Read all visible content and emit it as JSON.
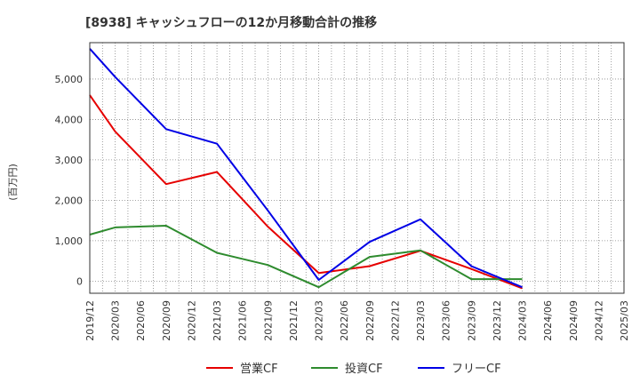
{
  "chart_data": {
    "type": "line",
    "title": "[8938]  キャッシュフローの12か月移動合計の推移",
    "xlabel": "",
    "ylabel": "(百万円)",
    "categories": [
      "2019/12",
      "2020/03",
      "2020/06",
      "2020/09",
      "2020/12",
      "2021/03",
      "2021/06",
      "2021/09",
      "2021/12",
      "2022/03",
      "2022/06",
      "2022/09",
      "2022/12",
      "2023/03",
      "2023/06",
      "2023/09",
      "2023/12",
      "2024/03",
      "2024/06",
      "2024/09",
      "2024/12",
      "2025/03"
    ],
    "ylim": [
      -300,
      5900
    ],
    "yticks": [
      0,
      1000,
      2000,
      3000,
      4000,
      5000
    ],
    "ytick_labels": [
      "0",
      "1,000",
      "2,000",
      "3,000",
      "4,000",
      "5,000"
    ],
    "grid": true,
    "legend_position": "bottom",
    "series": [
      {
        "name": "営業CF",
        "color": "#e60000",
        "values": [
          4600,
          3700,
          null,
          2400,
          null,
          2700,
          null,
          1350,
          null,
          200,
          null,
          370,
          null,
          750,
          null,
          300,
          null,
          -180,
          null,
          null,
          null,
          null
        ]
      },
      {
        "name": "投資CF",
        "color": "#2e8b2e",
        "values": [
          1150,
          1330,
          null,
          1370,
          null,
          700,
          null,
          400,
          null,
          -150,
          null,
          600,
          null,
          760,
          null,
          50,
          null,
          50,
          null,
          null,
          null,
          null
        ]
      },
      {
        "name": "フリーCF",
        "color": "#0000e6",
        "values": [
          5750,
          5050,
          null,
          3760,
          null,
          3400,
          null,
          1750,
          null,
          30,
          null,
          970,
          null,
          1530,
          null,
          370,
          null,
          -150,
          null,
          null,
          null,
          null
        ]
      }
    ]
  }
}
